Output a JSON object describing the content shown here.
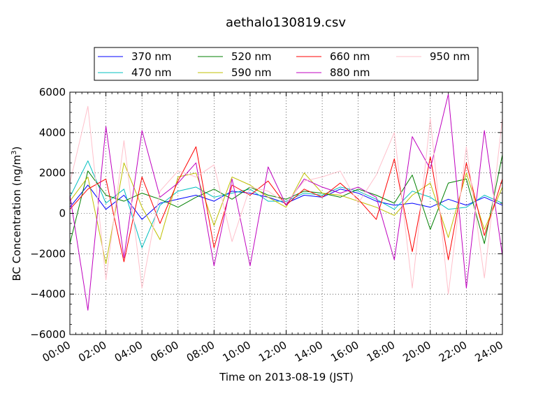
{
  "chart_data": {
    "type": "line",
    "title": "aethalo130819.csv",
    "xlabel": "Time on 2013-08-19 (JST)",
    "ylabel": "BC Concentration (ng/m³)",
    "ylabel_main": "BC Concentration (ng/m",
    "ylabel_sup": "3",
    "ylabel_end": ")",
    "xlim": [
      "00:00",
      "24:00"
    ],
    "ylim": [
      -6000,
      6000
    ],
    "x_ticks": [
      "00:00",
      "02:00",
      "04:00",
      "06:00",
      "08:00",
      "10:00",
      "12:00",
      "14:00",
      "16:00",
      "18:00",
      "20:00",
      "22:00",
      "24:00"
    ],
    "y_ticks": [
      -6000,
      -4000,
      -2000,
      0,
      2000,
      4000,
      6000
    ],
    "y_tick_labels": [
      "−6000",
      "−4000",
      "−2000",
      "0",
      "2000",
      "4000",
      "6000"
    ],
    "grid": true,
    "legend_position": "top",
    "x_sample_times": [
      "00:00",
      "01:00",
      "02:00",
      "03:00",
      "04:00",
      "05:00",
      "06:00",
      "07:00",
      "08:00",
      "09:00",
      "10:00",
      "11:00",
      "12:00",
      "13:00",
      "14:00",
      "15:00",
      "16:00",
      "17:00",
      "18:00",
      "19:00",
      "20:00",
      "21:00",
      "22:00",
      "23:00",
      "24:00"
    ],
    "series": [
      {
        "name": "370 nm",
        "color": "#0000ff",
        "values": [
          300,
          1400,
          200,
          900,
          -300,
          500,
          700,
          900,
          600,
          1100,
          1000,
          800,
          500,
          900,
          800,
          1200,
          1000,
          600,
          400,
          500,
          300,
          700,
          400,
          800,
          400
        ]
      },
      {
        "name": "470 nm",
        "color": "#00bfbf",
        "values": [
          800,
          2600,
          500,
          1200,
          -1700,
          400,
          1100,
          1300,
          800,
          1000,
          1200,
          600,
          600,
          1000,
          900,
          1300,
          1100,
          700,
          200,
          1100,
          800,
          200,
          300,
          900,
          500
        ]
      },
      {
        "name": "520 nm",
        "color": "#008000",
        "values": [
          -1500,
          2100,
          900,
          600,
          1000,
          700,
          300,
          800,
          1200,
          700,
          1300,
          900,
          700,
          1100,
          1000,
          800,
          1200,
          900,
          500,
          1900,
          -800,
          1500,
          1700,
          -1500,
          2900
        ]
      },
      {
        "name": "590 nm",
        "color": "#bfbf00",
        "values": [
          600,
          1800,
          -2500,
          2500,
          300,
          -1300,
          1800,
          2000,
          -600,
          1800,
          1400,
          800,
          300,
          2000,
          1000,
          900,
          600,
          300,
          -100,
          900,
          1500,
          -1200,
          2000,
          -800,
          1300
        ]
      },
      {
        "name": "660 nm",
        "color": "#ff0000",
        "values": [
          200,
          1200,
          1700,
          -2400,
          1800,
          -500,
          1600,
          3300,
          -1700,
          1400,
          900,
          1600,
          400,
          1200,
          800,
          1500,
          700,
          -300,
          2700,
          -1900,
          2800,
          -2300,
          2500,
          -1100,
          1700
        ]
      },
      {
        "name": "880 nm",
        "color": "#bf00bf",
        "values": [
          900,
          -4800,
          4300,
          -2200,
          4100,
          800,
          1500,
          2500,
          -2600,
          1700,
          -2600,
          2300,
          400,
          1700,
          1300,
          1000,
          1300,
          800,
          -2300,
          3800,
          2200,
          5900,
          -3700,
          4100,
          -2100
        ]
      },
      {
        "name": "950 nm",
        "color": "#ffc0cb",
        "values": [
          1500,
          5300,
          -3300,
          3600,
          -3700,
          1100,
          2100,
          1800,
          2400,
          -1400,
          1300,
          1100,
          500,
          1600,
          1800,
          2100,
          500,
          1900,
          4000,
          -3700,
          4700,
          -4000,
          3300,
          -3200,
          4700
        ]
      }
    ]
  }
}
